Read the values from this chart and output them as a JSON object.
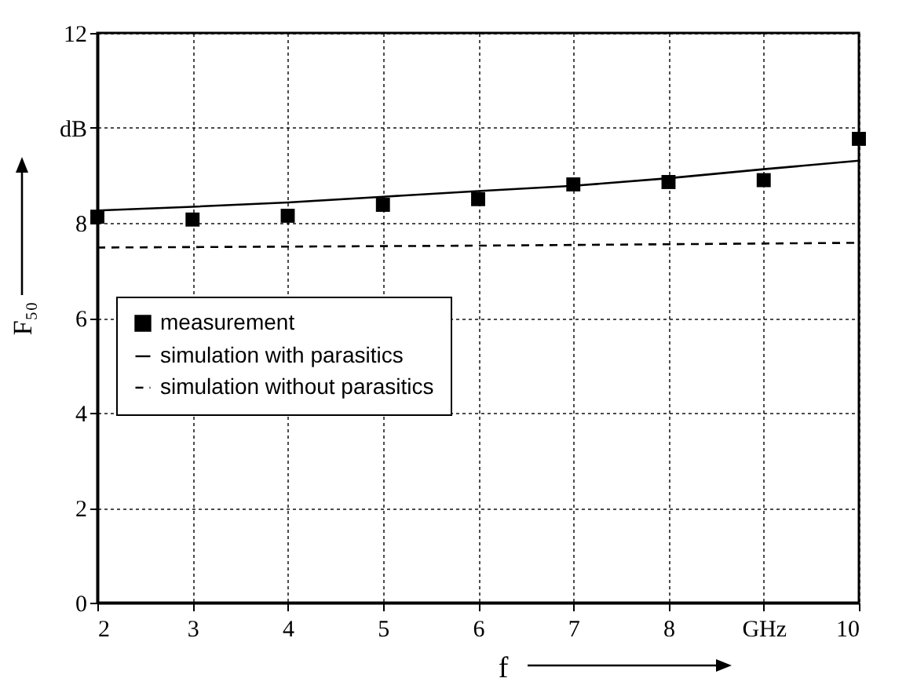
{
  "chart_data": {
    "type": "line",
    "xlabel": "f",
    "ylabel": "F₅₀",
    "xlim": [
      2,
      10
    ],
    "xticks": [
      2,
      3,
      4,
      5,
      6,
      7,
      8,
      {
        "value": 9,
        "label": "GHz"
      },
      10
    ],
    "ylim": [
      0,
      12
    ],
    "yticks": [
      0,
      2,
      4,
      6,
      8,
      {
        "value": 10,
        "label": "dB"
      },
      12
    ],
    "grid": true,
    "legend": "left",
    "series": [
      {
        "name": "measurement",
        "type": "scatter",
        "marker": "square",
        "color": "#000000",
        "x": [
          2,
          3,
          4,
          5,
          6,
          7,
          8,
          9,
          10
        ],
        "values": [
          8.13,
          8.07,
          8.15,
          8.38,
          8.5,
          8.81,
          8.86,
          8.9,
          9.77
        ]
      },
      {
        "name": "simulation with parasitics",
        "line_style": "solid",
        "marker": "none",
        "color": "#000000",
        "x": [
          2,
          3,
          4,
          5,
          6,
          7,
          8,
          9,
          10
        ],
        "values": [
          8.26,
          8.34,
          8.43,
          8.55,
          8.67,
          8.78,
          8.94,
          9.13,
          9.31
        ]
      },
      {
        "name": "simulation without parasitics",
        "line_style": "dashed",
        "marker": "none",
        "color": "#000000",
        "x": [
          2,
          6,
          10
        ],
        "values": [
          7.48,
          7.52,
          7.58
        ]
      }
    ]
  }
}
